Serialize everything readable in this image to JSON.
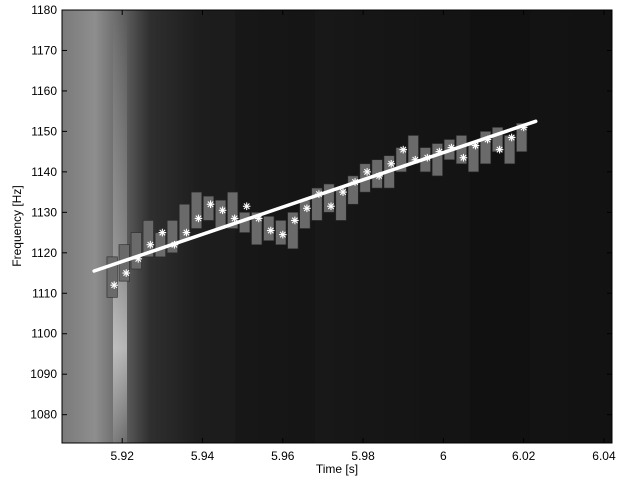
{
  "chart_data": {
    "type": "scatter",
    "title": "",
    "xlabel": "Time [s]",
    "ylabel": "Frequency [Hz]",
    "xlim": [
      5.905,
      6.042
    ],
    "ylim": [
      1073,
      1180
    ],
    "xticks": [
      5.92,
      5.94,
      5.96,
      5.98,
      6.0,
      6.02,
      6.04
    ],
    "xtick_labels": [
      "5.92",
      "5.94",
      "5.96",
      "5.98",
      "6",
      "6.02",
      "6.04"
    ],
    "yticks": [
      1080,
      1090,
      1100,
      1110,
      1120,
      1130,
      1140,
      1150,
      1160,
      1170,
      1180
    ],
    "ytick_labels": [
      "1080",
      "1090",
      "1100",
      "1110",
      "1120",
      "1130",
      "1140",
      "1150",
      "1160",
      "1170",
      "1180"
    ],
    "grid": false,
    "colors": {
      "background": "#171717",
      "axes_frame": "#000000",
      "bars": "#6a6a6a",
      "markers": "#ffffff",
      "fit_line": "#ffffff"
    },
    "bars": [
      {
        "x": 5.9175,
        "low": 1109,
        "high": 1119
      },
      {
        "x": 5.9205,
        "low": 1113,
        "high": 1122
      },
      {
        "x": 5.9235,
        "low": 1116,
        "high": 1125
      },
      {
        "x": 5.9265,
        "low": 1119,
        "high": 1128
      },
      {
        "x": 5.9295,
        "low": 1119,
        "high": 1125
      },
      {
        "x": 5.9325,
        "low": 1120,
        "high": 1128
      },
      {
        "x": 5.9355,
        "low": 1123,
        "high": 1132
      },
      {
        "x": 5.9385,
        "low": 1126,
        "high": 1135
      },
      {
        "x": 5.9415,
        "low": 1128,
        "high": 1134
      },
      {
        "x": 5.9445,
        "low": 1126,
        "high": 1133
      },
      {
        "x": 5.9475,
        "low": 1126,
        "high": 1135
      },
      {
        "x": 5.9505,
        "low": 1125,
        "high": 1130
      },
      {
        "x": 5.9535,
        "low": 1122,
        "high": 1130
      },
      {
        "x": 5.9565,
        "low": 1123,
        "high": 1129
      },
      {
        "x": 5.9595,
        "low": 1122,
        "high": 1128
      },
      {
        "x": 5.9625,
        "low": 1121,
        "high": 1130
      },
      {
        "x": 5.9655,
        "low": 1126,
        "high": 1133
      },
      {
        "x": 5.9685,
        "low": 1128,
        "high": 1136
      },
      {
        "x": 5.9715,
        "low": 1130,
        "high": 1137
      },
      {
        "x": 5.9745,
        "low": 1128,
        "high": 1136
      },
      {
        "x": 5.9775,
        "low": 1132,
        "high": 1139
      },
      {
        "x": 5.9805,
        "low": 1135,
        "high": 1142
      },
      {
        "x": 5.9835,
        "low": 1136,
        "high": 1143
      },
      {
        "x": 5.9865,
        "low": 1136,
        "high": 1144
      },
      {
        "x": 5.9895,
        "low": 1140,
        "high": 1146
      },
      {
        "x": 5.9925,
        "low": 1142,
        "high": 1149
      },
      {
        "x": 5.9955,
        "low": 1140,
        "high": 1146
      },
      {
        "x": 5.9985,
        "low": 1139,
        "high": 1147
      },
      {
        "x": 6.0015,
        "low": 1143,
        "high": 1148
      },
      {
        "x": 6.0045,
        "low": 1142,
        "high": 1149
      },
      {
        "x": 6.0075,
        "low": 1140,
        "high": 1147
      },
      {
        "x": 6.0105,
        "low": 1142,
        "high": 1150
      },
      {
        "x": 6.0135,
        "low": 1145,
        "high": 1151
      },
      {
        "x": 6.0165,
        "low": 1142,
        "high": 1149
      },
      {
        "x": 6.0195,
        "low": 1145,
        "high": 1152
      }
    ],
    "markers": [
      {
        "x": 5.918,
        "y": 1112
      },
      {
        "x": 5.921,
        "y": 1115
      },
      {
        "x": 5.924,
        "y": 1118.5
      },
      {
        "x": 5.927,
        "y": 1122
      },
      {
        "x": 5.93,
        "y": 1125
      },
      {
        "x": 5.933,
        "y": 1122
      },
      {
        "x": 5.936,
        "y": 1125
      },
      {
        "x": 5.939,
        "y": 1128.5
      },
      {
        "x": 5.942,
        "y": 1132
      },
      {
        "x": 5.945,
        "y": 1130.5
      },
      {
        "x": 5.948,
        "y": 1128.5
      },
      {
        "x": 5.951,
        "y": 1131.5
      },
      {
        "x": 5.954,
        "y": 1128.5
      },
      {
        "x": 5.957,
        "y": 1125.5
      },
      {
        "x": 5.96,
        "y": 1124.5
      },
      {
        "x": 5.963,
        "y": 1128
      },
      {
        "x": 5.966,
        "y": 1131
      },
      {
        "x": 5.969,
        "y": 1134.5
      },
      {
        "x": 5.972,
        "y": 1131.5
      },
      {
        "x": 5.975,
        "y": 1135
      },
      {
        "x": 5.978,
        "y": 1137.5
      },
      {
        "x": 5.981,
        "y": 1140
      },
      {
        "x": 5.984,
        "y": 1139
      },
      {
        "x": 5.987,
        "y": 1142
      },
      {
        "x": 5.99,
        "y": 1145.5
      },
      {
        "x": 5.993,
        "y": 1143
      },
      {
        "x": 5.996,
        "y": 1143.5
      },
      {
        "x": 5.999,
        "y": 1145
      },
      {
        "x": 6.002,
        "y": 1146
      },
      {
        "x": 6.005,
        "y": 1143.5
      },
      {
        "x": 6.008,
        "y": 1146.5
      },
      {
        "x": 6.011,
        "y": 1148
      },
      {
        "x": 6.014,
        "y": 1145.5
      },
      {
        "x": 6.017,
        "y": 1148.5
      },
      {
        "x": 6.02,
        "y": 1151
      }
    ],
    "fit_line": {
      "x": [
        5.913,
        6.023
      ],
      "y": [
        1115.5,
        1152.5
      ]
    }
  }
}
